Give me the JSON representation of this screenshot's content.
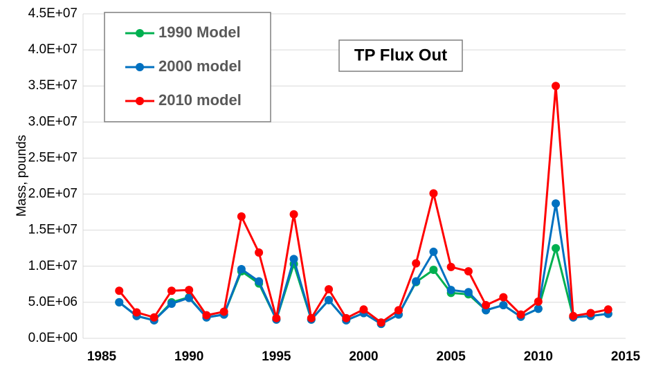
{
  "chart_data": {
    "type": "line",
    "title": "TP Flux Out",
    "y_label": "Mass, pounds",
    "x": [
      1986,
      1987,
      1988,
      1989,
      1990,
      1991,
      1992,
      1993,
      1994,
      1995,
      1996,
      1997,
      1998,
      1999,
      2000,
      2001,
      2002,
      2003,
      2004,
      2005,
      2006,
      2007,
      2008,
      2009,
      2010,
      2011,
      2012,
      2013,
      2014
    ],
    "series": [
      {
        "name": "1990 Model",
        "color": "#00b050",
        "values": [
          5000000,
          3100000,
          2500000,
          5000000,
          5700000,
          2900000,
          3300000,
          9300000,
          7600000,
          2600000,
          10300000,
          2600000,
          5300000,
          2500000,
          3500000,
          2000000,
          3300000,
          7800000,
          9500000,
          6300000,
          6100000,
          3900000,
          4600000,
          3000000,
          4100000,
          12500000,
          2900000,
          3100000,
          3400000
        ]
      },
      {
        "name": "2000 model",
        "color": "#0070c0",
        "values": [
          5000000,
          3100000,
          2500000,
          4800000,
          5600000,
          2900000,
          3300000,
          9600000,
          7900000,
          2600000,
          11000000,
          2600000,
          5300000,
          2500000,
          3500000,
          2000000,
          3300000,
          7900000,
          12000000,
          6700000,
          6400000,
          3900000,
          4600000,
          3000000,
          4100000,
          18700000,
          2900000,
          3100000,
          3400000
        ]
      },
      {
        "name": "2010 model",
        "color": "#ff0000",
        "values": [
          6600000,
          3600000,
          2900000,
          6600000,
          6700000,
          3200000,
          3700000,
          16900000,
          11900000,
          2800000,
          17200000,
          2800000,
          6800000,
          2800000,
          4000000,
          2200000,
          3900000,
          10400000,
          20100000,
          9900000,
          9300000,
          4600000,
          5700000,
          3300000,
          5100000,
          35000000,
          3100000,
          3500000,
          4000000
        ]
      }
    ],
    "xlim": [
      1985,
      2015
    ],
    "xticks": [
      1985,
      1990,
      1995,
      2000,
      2005,
      2010,
      2015
    ],
    "ylim": [
      0,
      45000000
    ],
    "yticks": [
      {
        "value": 0,
        "label": "0.0E+00"
      },
      {
        "value": 5000000,
        "label": "5.0E+06"
      },
      {
        "value": 10000000,
        "label": "1.0E+07"
      },
      {
        "value": 15000000,
        "label": "1.5E+07"
      },
      {
        "value": 20000000,
        "label": "2.0E+07"
      },
      {
        "value": 25000000,
        "label": "2.5E+07"
      },
      {
        "value": 30000000,
        "label": "3.0E+07"
      },
      {
        "value": 35000000,
        "label": "3.5E+07"
      },
      {
        "value": 40000000,
        "label": "4.0E+07"
      },
      {
        "value": 45000000,
        "label": "4.5E+07"
      }
    ],
    "grid": true,
    "legend": "upper left"
  }
}
